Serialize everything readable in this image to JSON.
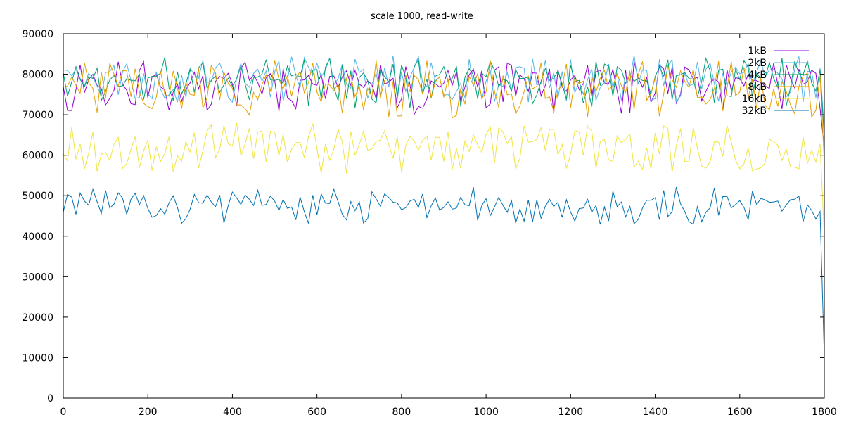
{
  "chart_data": {
    "type": "line",
    "title": "scale 1000, read-write",
    "xlabel": "",
    "ylabel": "",
    "xlim": [
      0,
      1800
    ],
    "ylim": [
      0,
      90000
    ],
    "xticks": [
      0,
      200,
      400,
      600,
      800,
      1000,
      1200,
      1400,
      1600,
      1800
    ],
    "yticks": [
      0,
      10000,
      20000,
      30000,
      40000,
      50000,
      60000,
      70000,
      80000,
      90000
    ],
    "grid": false,
    "legend_position": "top-right",
    "series": [
      {
        "name": "1kB",
        "color": "#9400d3",
        "base": 78500,
        "amp": 4200,
        "end": 62000,
        "seed": 11
      },
      {
        "name": "2kB",
        "color": "#56b4e9",
        "base": 80500,
        "amp": 3800,
        "end": 66000,
        "seed": 23
      },
      {
        "name": "4kB",
        "color": "#009e73",
        "base": 79500,
        "amp": 4000,
        "end": 64000,
        "seed": 37
      },
      {
        "name": "8kB",
        "color": "#e69f00",
        "base": 78000,
        "amp": 4400,
        "end": 58000,
        "seed": 51
      },
      {
        "name": "16kB",
        "color": "#f0e442",
        "base": 63500,
        "amp": 4000,
        "end": 40000,
        "seed": 67
      },
      {
        "name": "32kB",
        "color": "#0072b2",
        "base": 48500,
        "amp": 2800,
        "end": 10000,
        "seed": 83
      }
    ]
  }
}
